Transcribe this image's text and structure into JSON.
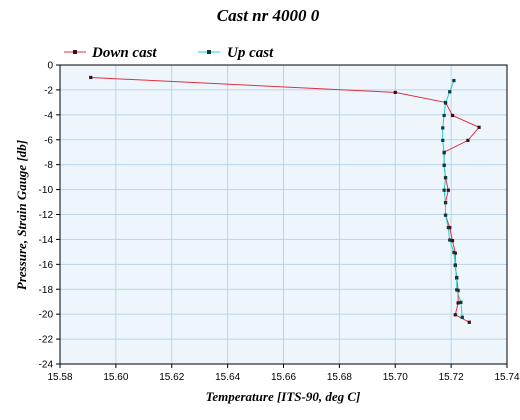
{
  "chart_data": {
    "type": "line",
    "title": "Cast nr 4000 0",
    "xlabel": "Temperature [ITS-90, deg C]",
    "ylabel": "Pressure, Strain Gauge [db]",
    "xlim": [
      15.58,
      15.74
    ],
    "ylim": [
      -24,
      0
    ],
    "x_ticks": [
      "15.58",
      "15.60",
      "15.62",
      "15.64",
      "15.66",
      "15.68",
      "15.70",
      "15.72",
      "15.74"
    ],
    "y_ticks": [
      "0",
      "-2",
      "-4",
      "-6",
      "-8",
      "-10",
      "-12",
      "-14",
      "-16",
      "-18",
      "-20",
      "-22",
      "-24"
    ],
    "grid": true,
    "legend": "top-left",
    "series": [
      {
        "name": "Down cast",
        "color": "#e03040",
        "marker_color": "#3a1018",
        "points": [
          [
            15.591,
            -1.0
          ],
          [
            15.7,
            -2.2
          ],
          [
            15.718,
            -3.0
          ],
          [
            15.7205,
            -4.05
          ],
          [
            15.73,
            -5.0
          ],
          [
            15.726,
            -6.05
          ],
          [
            15.7175,
            -7.0
          ],
          [
            15.7175,
            -8.05
          ],
          [
            15.718,
            -9.05
          ],
          [
            15.719,
            -10.05
          ],
          [
            15.718,
            -11.05
          ],
          [
            15.718,
            -12.05
          ],
          [
            15.7195,
            -13.05
          ],
          [
            15.7205,
            -14.1
          ],
          [
            15.7215,
            -15.1
          ],
          [
            15.7215,
            -16.1
          ],
          [
            15.722,
            -17.1
          ],
          [
            15.7225,
            -18.1
          ],
          [
            15.7225,
            -19.1
          ],
          [
            15.7215,
            -20.05
          ],
          [
            15.7265,
            -20.65
          ]
        ]
      },
      {
        "name": "Up cast",
        "color": "#20d0d0",
        "marker_color": "#103838",
        "points": [
          [
            15.724,
            -20.25
          ],
          [
            15.7235,
            -19.05
          ],
          [
            15.722,
            -18.05
          ],
          [
            15.722,
            -17.05
          ],
          [
            15.7215,
            -16.05
          ],
          [
            15.721,
            -15.05
          ],
          [
            15.7195,
            -14.05
          ],
          [
            15.719,
            -13.05
          ],
          [
            15.718,
            -12.05
          ],
          [
            15.718,
            -11.05
          ],
          [
            15.7175,
            -10.05
          ],
          [
            15.718,
            -9.05
          ],
          [
            15.7175,
            -8.05
          ],
          [
            15.7175,
            -7.05
          ],
          [
            15.717,
            -6.05
          ],
          [
            15.717,
            -5.05
          ],
          [
            15.7175,
            -4.05
          ],
          [
            15.718,
            -3.05
          ],
          [
            15.7195,
            -2.15
          ],
          [
            15.721,
            -1.25
          ]
        ]
      }
    ]
  }
}
